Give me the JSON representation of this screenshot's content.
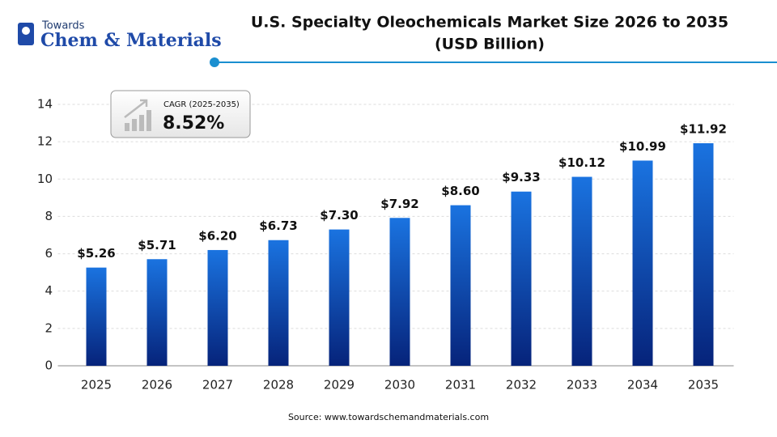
{
  "logo": {
    "top": "Towards",
    "name": "Chem & Materials"
  },
  "chart_data": {
    "type": "bar",
    "title": "U.S. Specialty Oleochemicals Market Size 2026 to 2035",
    "subtitle": "(USD Billion)",
    "categories": [
      "2025",
      "2026",
      "2027",
      "2028",
      "2029",
      "2030",
      "2031",
      "2032",
      "2033",
      "2034",
      "2035"
    ],
    "values": [
      5.26,
      5.71,
      6.2,
      6.73,
      7.3,
      7.92,
      8.6,
      9.33,
      10.12,
      10.99,
      11.92
    ],
    "value_labels": [
      "$5.26",
      "$5.71",
      "$6.20",
      "$6.73",
      "$7.30",
      "$7.92",
      "$8.60",
      "$9.33",
      "$10.12",
      "$10.99",
      "$11.92"
    ],
    "color": "#1a73e0",
    "ylim": [
      0,
      14
    ],
    "yticks": [
      0,
      2,
      4,
      6,
      8,
      10,
      12,
      14
    ],
    "grid": true,
    "annotation": {
      "label": "CAGR (2025-2035)",
      "value": "8.52%"
    },
    "source": "Source: www.towardschemandmaterials.com"
  }
}
